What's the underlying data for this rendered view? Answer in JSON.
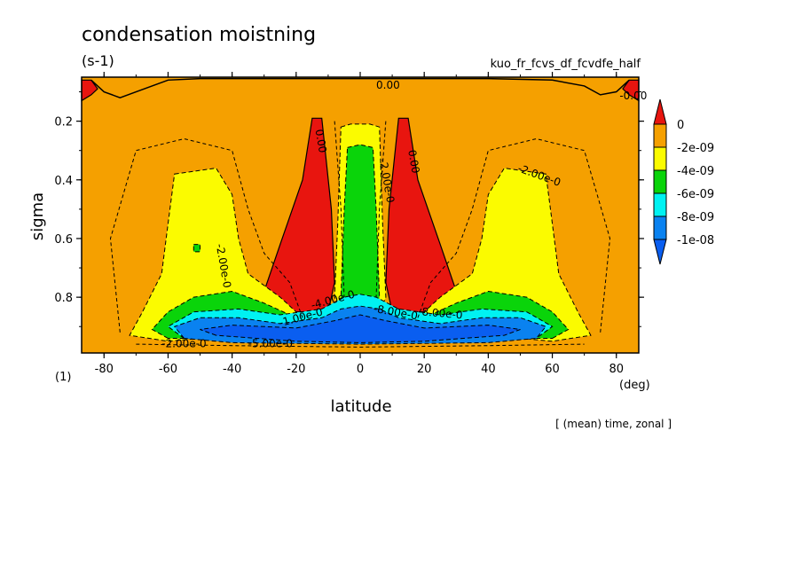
{
  "chart_data": {
    "type": "contour",
    "title": "condensation moistning",
    "units": "(s-1)",
    "experiment": "kuo_fr_fcvs_df_fcvdfe_half",
    "xlabel": "latitude",
    "xunits": "(deg)",
    "ylabel": "sigma",
    "yunits": "(1)",
    "footer": "[ (mean) time, zonal ]",
    "xlim": [
      -87,
      87
    ],
    "ylim": [
      0.05,
      0.99
    ],
    "y_reversed": true,
    "x_ticks": [
      -80,
      -60,
      -40,
      -20,
      0,
      20,
      40,
      60,
      80
    ],
    "x_tick_labels": [
      "-80",
      "-60",
      "-40",
      "-20",
      "0",
      "20",
      "40",
      "60",
      "80"
    ],
    "y_ticks": [
      0.2,
      0.4,
      0.6,
      0.8
    ],
    "y_tick_labels": [
      "0.2",
      "0.4",
      "0.6",
      "0.8"
    ],
    "colorbar": {
      "labels": [
        "0",
        "-2e-09",
        "-4e-09",
        "-6e-09",
        "-8e-09",
        "-1e-08"
      ],
      "colors": [
        "#e8150f",
        "#f5a000",
        "#fbfb00",
        "#0ad40a",
        "#00f2f2",
        "#0a82f0",
        "#0a5ef0"
      ],
      "extend": "both"
    },
    "contour_labels": [
      "0.00",
      "-0.00",
      "0.00",
      "0.00",
      "-2.00e-0",
      "-2.00e-0",
      "-2.00e-0",
      "-4.00e-0",
      "-1.00e-0",
      "-8.00e-0",
      "-2.00e-0",
      "-5.00e-0",
      "-8.00e-0"
    ],
    "regions": [
      {
        "name": "positive-cap-left",
        "level": "positive",
        "points": [
          [
            -87,
            0.06
          ],
          [
            -84,
            0.06
          ],
          [
            -82,
            0.09
          ],
          [
            -84,
            0.11
          ],
          [
            -87,
            0.13
          ]
        ]
      },
      {
        "name": "positive-cap-right",
        "level": "positive",
        "points": [
          [
            87,
            0.06
          ],
          [
            84,
            0.06
          ],
          [
            82,
            0.09
          ],
          [
            84,
            0.11
          ],
          [
            87,
            0.13
          ]
        ]
      },
      {
        "name": "positive-left-blob",
        "level": "positive",
        "points": [
          [
            -15,
            0.19
          ],
          [
            -12,
            0.19
          ],
          [
            -9,
            0.5
          ],
          [
            -8,
            0.75
          ],
          [
            -10,
            0.85
          ],
          [
            -20,
            0.85
          ],
          [
            -29,
            0.83
          ],
          [
            -30,
            0.78
          ],
          [
            -25,
            0.62
          ],
          [
            -18,
            0.4
          ]
        ]
      },
      {
        "name": "positive-right-blob",
        "level": "positive",
        "points": [
          [
            12,
            0.19
          ],
          [
            15,
            0.19
          ],
          [
            18,
            0.4
          ],
          [
            25,
            0.62
          ],
          [
            30,
            0.78
          ],
          [
            29,
            0.83
          ],
          [
            20,
            0.85
          ],
          [
            10,
            0.85
          ],
          [
            8,
            0.75
          ],
          [
            9,
            0.5
          ]
        ]
      },
      {
        "name": "yellow-left",
        "level": "-2e-09",
        "points": [
          [
            -58,
            0.38
          ],
          [
            -45,
            0.36
          ],
          [
            -40,
            0.45
          ],
          [
            -38,
            0.6
          ],
          [
            -35,
            0.72
          ],
          [
            -30,
            0.76
          ],
          [
            -25,
            0.8
          ],
          [
            -20,
            0.85
          ],
          [
            -18,
            0.9
          ],
          [
            -40,
            0.93
          ],
          [
            -60,
            0.95
          ],
          [
            -72,
            0.93
          ],
          [
            -68,
            0.85
          ],
          [
            -62,
            0.72
          ],
          [
            -60,
            0.55
          ]
        ]
      },
      {
        "name": "yellow-right",
        "level": "-2e-09",
        "points": [
          [
            58,
            0.38
          ],
          [
            45,
            0.36
          ],
          [
            40,
            0.45
          ],
          [
            38,
            0.6
          ],
          [
            35,
            0.72
          ],
          [
            30,
            0.76
          ],
          [
            25,
            0.8
          ],
          [
            20,
            0.85
          ],
          [
            18,
            0.9
          ],
          [
            40,
            0.93
          ],
          [
            60,
            0.95
          ],
          [
            72,
            0.93
          ],
          [
            68,
            0.85
          ],
          [
            62,
            0.72
          ],
          [
            60,
            0.55
          ]
        ]
      },
      {
        "name": "yellow-center",
        "level": "-2e-09",
        "points": [
          [
            -6,
            0.22
          ],
          [
            -3,
            0.21
          ],
          [
            3,
            0.21
          ],
          [
            6,
            0.22
          ],
          [
            7,
            0.55
          ],
          [
            8,
            0.8
          ],
          [
            5,
            0.88
          ],
          [
            -5,
            0.88
          ],
          [
            -8,
            0.8
          ],
          [
            -7,
            0.55
          ]
        ]
      },
      {
        "name": "green-center",
        "level": "-4e-09",
        "points": [
          [
            -4,
            0.29
          ],
          [
            0,
            0.28
          ],
          [
            4,
            0.29
          ],
          [
            5,
            0.5
          ],
          [
            6,
            0.8
          ],
          [
            4,
            0.86
          ],
          [
            -4,
            0.86
          ],
          [
            -6,
            0.8
          ],
          [
            -5,
            0.5
          ]
        ]
      },
      {
        "name": "green-left",
        "level": "-4e-09",
        "points": [
          [
            -60,
            0.94
          ],
          [
            -65,
            0.91
          ],
          [
            -60,
            0.85
          ],
          [
            -52,
            0.8
          ],
          [
            -40,
            0.78
          ],
          [
            -30,
            0.82
          ],
          [
            -20,
            0.87
          ],
          [
            -12,
            0.9
          ],
          [
            -15,
            0.93
          ],
          [
            -40,
            0.94
          ]
        ]
      },
      {
        "name": "green-right",
        "level": "-4e-09",
        "points": [
          [
            60,
            0.94
          ],
          [
            65,
            0.91
          ],
          [
            60,
            0.85
          ],
          [
            52,
            0.8
          ],
          [
            40,
            0.78
          ],
          [
            30,
            0.82
          ],
          [
            20,
            0.87
          ],
          [
            12,
            0.9
          ],
          [
            15,
            0.93
          ],
          [
            40,
            0.94
          ]
        ]
      },
      {
        "name": "green-spot-left",
        "level": "-4e-09",
        "points": [
          [
            -52,
            0.62
          ],
          [
            -50,
            0.62
          ],
          [
            -50,
            0.645
          ],
          [
            -52,
            0.645
          ]
        ]
      },
      {
        "name": "cyan-band",
        "level": "-6e-09",
        "points": [
          [
            -55,
            0.94
          ],
          [
            -60,
            0.9
          ],
          [
            -52,
            0.85
          ],
          [
            -38,
            0.84
          ],
          [
            -25,
            0.86
          ],
          [
            -12,
            0.84
          ],
          [
            -5,
            0.8
          ],
          [
            0,
            0.79
          ],
          [
            5,
            0.8
          ],
          [
            12,
            0.84
          ],
          [
            25,
            0.86
          ],
          [
            38,
            0.84
          ],
          [
            52,
            0.85
          ],
          [
            60,
            0.9
          ],
          [
            55,
            0.94
          ],
          [
            40,
            0.95
          ],
          [
            0,
            0.955
          ],
          [
            -40,
            0.95
          ]
        ]
      },
      {
        "name": "blue-band",
        "level": "-8e-09",
        "points": [
          [
            -55,
            0.94
          ],
          [
            -58,
            0.9
          ],
          [
            -50,
            0.87
          ],
          [
            -38,
            0.87
          ],
          [
            -25,
            0.89
          ],
          [
            -12,
            0.87
          ],
          [
            -6,
            0.84
          ],
          [
            0,
            0.83
          ],
          [
            6,
            0.84
          ],
          [
            12,
            0.87
          ],
          [
            25,
            0.89
          ],
          [
            38,
            0.87
          ],
          [
            50,
            0.87
          ],
          [
            58,
            0.9
          ],
          [
            55,
            0.94
          ],
          [
            40,
            0.955
          ],
          [
            0,
            0.96
          ],
          [
            -40,
            0.955
          ]
        ]
      },
      {
        "name": "deep-core",
        "level": "-1e-08",
        "points": [
          [
            -45,
            0.93
          ],
          [
            -50,
            0.91
          ],
          [
            -40,
            0.895
          ],
          [
            -20,
            0.905
          ],
          [
            -8,
            0.88
          ],
          [
            0,
            0.86
          ],
          [
            8,
            0.88
          ],
          [
            20,
            0.905
          ],
          [
            40,
            0.895
          ],
          [
            50,
            0.91
          ],
          [
            45,
            0.93
          ],
          [
            20,
            0.95
          ],
          [
            0,
            0.955
          ],
          [
            -20,
            0.95
          ]
        ]
      }
    ]
  }
}
